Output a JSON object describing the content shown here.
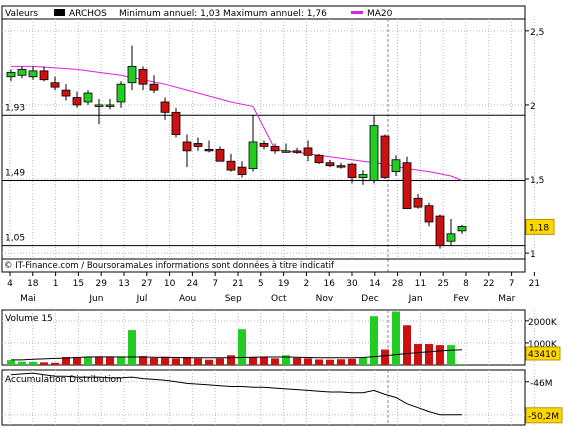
{
  "chart_data": [
    {
      "type": "candlestick",
      "legend": {
        "values_label": "Valeurs",
        "symbol": "ARCHOS",
        "min_max_text": "Minimum annuel: 1,03  Maximum annuel: 1,76",
        "ma_label": "MA20"
      },
      "colors": {
        "up": "#22cc22",
        "down": "#cc1111",
        "ma": "#e020e0"
      },
      "y_ticks": [
        "2,5",
        "2",
        "1,5",
        "1"
      ],
      "y_tick_values": [
        2.5,
        2.0,
        1.5,
        1.0
      ],
      "ylim": [
        0.96,
        2.58
      ],
      "ref_lines": [
        {
          "label": "1,93",
          "value": 1.93
        },
        {
          "label": "1,49",
          "value": 1.49
        },
        {
          "label": "1,05",
          "value": 1.05
        }
      ],
      "last_price_label": "1,18",
      "last_price": 1.18,
      "footer": "© IT-Finance.com / BoursoramaLes informations sont données à titre indicatif",
      "x_day_ticks": [
        "4",
        "18",
        "1",
        "15",
        "29",
        "13",
        "27",
        "10",
        "24",
        "7",
        "21",
        "5",
        "19",
        "2",
        "16",
        "30",
        "14",
        "28",
        "11",
        "25",
        "8",
        "22",
        "7",
        "21"
      ],
      "x_months": [
        "Mai",
        "Jun",
        "Jul",
        "Aou",
        "Sep",
        "Oct",
        "Nov",
        "Dec",
        "Jan",
        "Fev",
        "Mar"
      ],
      "x_month_tick_index": [
        0,
        3,
        5,
        7,
        9,
        11,
        13,
        15,
        17,
        19,
        21
      ],
      "ohlc": [
        {
          "o": 2.19,
          "h": 2.24,
          "l": 2.16,
          "c": 2.22
        },
        {
          "o": 2.2,
          "h": 2.26,
          "l": 2.18,
          "c": 2.24
        },
        {
          "o": 2.19,
          "h": 2.26,
          "l": 2.17,
          "c": 2.23
        },
        {
          "o": 2.23,
          "h": 2.26,
          "l": 2.16,
          "c": 2.17
        },
        {
          "o": 2.15,
          "h": 2.19,
          "l": 2.1,
          "c": 2.12
        },
        {
          "o": 2.1,
          "h": 2.14,
          "l": 2.03,
          "c": 2.06
        },
        {
          "o": 2.05,
          "h": 2.09,
          "l": 1.98,
          "c": 2.0
        },
        {
          "o": 2.02,
          "h": 2.1,
          "l": 2.0,
          "c": 2.08
        },
        {
          "o": 2.0,
          "h": 2.04,
          "l": 1.87,
          "c": 2.0
        },
        {
          "o": 2.0,
          "h": 2.04,
          "l": 1.97,
          "c": 2.0
        },
        {
          "o": 2.02,
          "h": 2.16,
          "l": 1.98,
          "c": 2.14
        },
        {
          "o": 2.15,
          "h": 2.4,
          "l": 2.1,
          "c": 2.26
        },
        {
          "o": 2.24,
          "h": 2.26,
          "l": 2.1,
          "c": 2.14
        },
        {
          "o": 2.14,
          "h": 2.2,
          "l": 2.08,
          "c": 2.1
        },
        {
          "o": 2.02,
          "h": 2.05,
          "l": 1.9,
          "c": 1.95
        },
        {
          "o": 1.95,
          "h": 1.98,
          "l": 1.78,
          "c": 1.8
        },
        {
          "o": 1.75,
          "h": 1.8,
          "l": 1.58,
          "c": 1.69
        },
        {
          "o": 1.74,
          "h": 1.78,
          "l": 1.69,
          "c": 1.72
        },
        {
          "o": 1.7,
          "h": 1.76,
          "l": 1.68,
          "c": 1.69
        },
        {
          "o": 1.7,
          "h": 1.72,
          "l": 1.62,
          "c": 1.62
        },
        {
          "o": 1.62,
          "h": 1.67,
          "l": 1.55,
          "c": 1.56
        },
        {
          "o": 1.58,
          "h": 1.62,
          "l": 1.51,
          "c": 1.53
        },
        {
          "o": 1.57,
          "h": 1.93,
          "l": 1.55,
          "c": 1.75
        },
        {
          "o": 1.74,
          "h": 1.76,
          "l": 1.7,
          "c": 1.72
        },
        {
          "o": 1.72,
          "h": 1.74,
          "l": 1.67,
          "c": 1.69
        },
        {
          "o": 1.69,
          "h": 1.74,
          "l": 1.68,
          "c": 1.69
        },
        {
          "o": 1.69,
          "h": 1.71,
          "l": 1.67,
          "c": 1.68
        },
        {
          "o": 1.71,
          "h": 1.76,
          "l": 1.62,
          "c": 1.66
        },
        {
          "o": 1.66,
          "h": 1.67,
          "l": 1.6,
          "c": 1.61
        },
        {
          "o": 1.61,
          "h": 1.63,
          "l": 1.58,
          "c": 1.59
        },
        {
          "o": 1.59,
          "h": 1.61,
          "l": 1.57,
          "c": 1.58
        },
        {
          "o": 1.6,
          "h": 1.61,
          "l": 1.47,
          "c": 1.51
        },
        {
          "o": 1.51,
          "h": 1.56,
          "l": 1.46,
          "c": 1.53
        },
        {
          "o": 1.49,
          "h": 1.93,
          "l": 1.47,
          "c": 1.86
        },
        {
          "o": 1.79,
          "h": 1.8,
          "l": 1.5,
          "c": 1.51
        },
        {
          "o": 1.55,
          "h": 1.66,
          "l": 1.52,
          "c": 1.63
        },
        {
          "o": 1.61,
          "h": 1.65,
          "l": 1.3,
          "c": 1.3
        },
        {
          "o": 1.37,
          "h": 1.4,
          "l": 1.3,
          "c": 1.31
        },
        {
          "o": 1.32,
          "h": 1.34,
          "l": 1.18,
          "c": 1.21
        },
        {
          "o": 1.25,
          "h": 1.26,
          "l": 1.03,
          "c": 1.05
        },
        {
          "o": 1.08,
          "h": 1.23,
          "l": 1.05,
          "c": 1.13
        },
        {
          "o": 1.15,
          "h": 1.19,
          "l": 1.13,
          "c": 1.18
        }
      ],
      "ma20": [
        2.26,
        2.26,
        2.25,
        2.24,
        2.22,
        2.2,
        2.17,
        2.14,
        2.1,
        2.06,
        2.02,
        1.99,
        1.96,
        1.93,
        1.9,
        1.88,
        1.85,
        1.82,
        1.79,
        1.77,
        1.74,
        1.71
      ],
      "ma20_at_index": [
        0,
        2,
        4,
        6,
        8,
        10,
        12,
        14,
        16,
        18,
        20,
        22,
        24,
        26,
        28,
        30,
        32,
        34,
        36,
        38,
        40,
        41
      ],
      "ma20_tail": [
        1.7,
        1.68,
        1.66,
        1.64,
        1.62,
        1.6,
        1.57,
        1.55,
        1.52,
        1.49
      ],
      "ma20_tail_index": [
        24,
        26,
        28,
        30,
        32,
        34,
        36,
        38,
        40,
        41
      ]
    },
    {
      "type": "bar",
      "label": "Volume 15",
      "y_ticks": [
        "2000K",
        "1000K"
      ],
      "y_tick_values": [
        2000,
        1000
      ],
      "ylim": [
        0,
        2400
      ],
      "last_value_label": "43410",
      "volumes_k": [
        220,
        150,
        140,
        120,
        100,
        360,
        350,
        370,
        380,
        360,
        360,
        1580,
        400,
        320,
        380,
        300,
        360,
        300,
        240,
        300,
        440,
        1620,
        340,
        350,
        300,
        440,
        320,
        300,
        250,
        240,
        260,
        280,
        330,
        2210,
        700,
        2420,
        1800,
        950,
        950,
        900,
        900,
        43
      ],
      "up": [
        true,
        true,
        true,
        false,
        false,
        false,
        false,
        true,
        false,
        false,
        true,
        true,
        false,
        false,
        false,
        false,
        false,
        false,
        false,
        false,
        false,
        true,
        false,
        false,
        false,
        true,
        false,
        false,
        false,
        false,
        false,
        false,
        true,
        true,
        false,
        true,
        false,
        false,
        false,
        false,
        true,
        true
      ],
      "ma_line_k": [
        230,
        230,
        260,
        280,
        300,
        310,
        340,
        360,
        370,
        370,
        360,
        360,
        360,
        350,
        340,
        340,
        330,
        330,
        330,
        330,
        330,
        340,
        350,
        360,
        360,
        360,
        350,
        340,
        330,
        330,
        330,
        330,
        340,
        380,
        420,
        470,
        520,
        560,
        600,
        640,
        670,
        690
      ]
    },
    {
      "type": "line",
      "label": "Accumulation Distribution",
      "y_ticks": [
        "-46M",
        "-50,2M"
      ],
      "y_tick_values": [
        -46,
        -50.2
      ],
      "ylim": [
        -51.5,
        -44.5
      ],
      "last_value_label": "-50,2M",
      "values": [
        -45.1,
        -45.0,
        -44.9,
        -45.1,
        -45.3,
        -45.3,
        -45.4,
        -45.4,
        -45.4,
        -45.5,
        -45.5,
        -45.4,
        -45.6,
        -45.7,
        -45.8,
        -46.0,
        -46.2,
        -46.3,
        -46.4,
        -46.5,
        -46.6,
        -46.6,
        -46.7,
        -46.7,
        -46.8,
        -46.9,
        -47.0,
        -47.1,
        -47.2,
        -47.3,
        -47.3,
        -47.4,
        -47.4,
        -47.1,
        -47.6,
        -48.0,
        -48.8,
        -49.3,
        -49.8,
        -50.2,
        -50.2,
        -50.2
      ]
    }
  ]
}
